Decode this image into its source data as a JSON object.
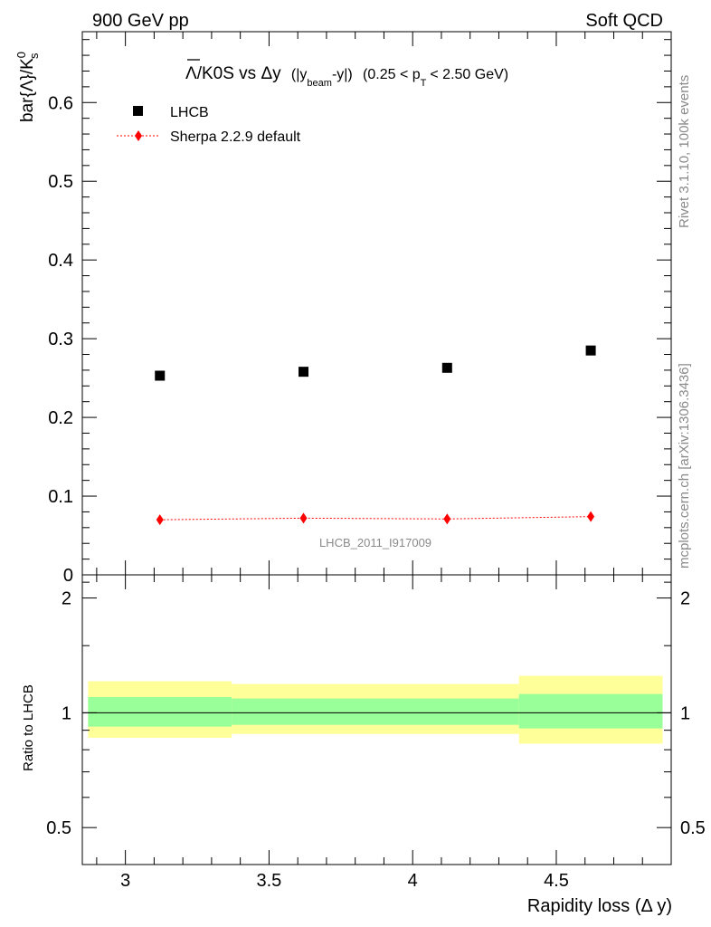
{
  "header": {
    "left": "900 GeV pp",
    "right": "Soft QCD"
  },
  "side_labels": {
    "rivet": "Rivet 3.1.10,  100k events",
    "mcplots": "mcplots.cern.ch [arXiv:1306.3436]"
  },
  "title": {
    "main": "Λ/K0S vs Δy",
    "range_open": "(|y",
    "range_sub": "beam",
    "range_close": "-y|)",
    "pt_open": "(0.25 < p",
    "pt_sub": "T",
    "pt_close": "< 2.50 GeV)"
  },
  "watermark": "LHCB_2011_I917009",
  "axes": {
    "ylabel_main": "bar{Λ}/K",
    "ylabel_sup": "0",
    "ylabel_sub": "s",
    "ylabel_ratio": "Ratio to LHCB",
    "xlabel": "Rapidity loss (Δ y)",
    "top_yticks": [
      "0",
      "0.1",
      "0.2",
      "0.3",
      "0.4",
      "0.5",
      "0.6"
    ],
    "ratio_yticks": [
      "0.5",
      "1",
      "2"
    ],
    "xticks": [
      "3",
      "3.5",
      "4",
      "4.5"
    ]
  },
  "legend": [
    {
      "label": "LHCB",
      "color": "#000000",
      "marker": "square"
    },
    {
      "label": "Sherpa 2.2.9 default",
      "color": "#ff0000",
      "marker": "diamond"
    }
  ],
  "colors": {
    "data": "#000000",
    "mc": "#ff0000",
    "band_inner": "#99ff99",
    "band_outer": "#ffff99"
  },
  "chart_data": [
    {
      "type": "scatter",
      "xlim": [
        2.85,
        4.9
      ],
      "ylim": [
        0,
        0.69
      ],
      "series": [
        {
          "name": "LHCB",
          "x": [
            3.12,
            3.62,
            4.12,
            4.62
          ],
          "y": [
            0.253,
            0.258,
            0.263,
            0.285
          ]
        },
        {
          "name": "Sherpa 2.2.9 default",
          "x": [
            3.12,
            3.62,
            4.12,
            4.62
          ],
          "y": [
            0.07,
            0.072,
            0.071,
            0.074
          ]
        }
      ]
    },
    {
      "type": "area",
      "yscale": "log",
      "xlim": [
        2.85,
        4.9
      ],
      "ylim": [
        0.4,
        2.3
      ],
      "bins": [
        {
          "x_low": 2.87,
          "x_high": 3.37,
          "inner": [
            0.92,
            1.1
          ],
          "outer": [
            0.86,
            1.21
          ]
        },
        {
          "x_low": 3.37,
          "x_high": 4.37,
          "inner": [
            0.93,
            1.09
          ],
          "outer": [
            0.88,
            1.19
          ]
        },
        {
          "x_low": 4.37,
          "x_high": 4.87,
          "inner": [
            0.91,
            1.12
          ],
          "outer": [
            0.83,
            1.25
          ]
        }
      ],
      "reference_line": 1
    }
  ]
}
